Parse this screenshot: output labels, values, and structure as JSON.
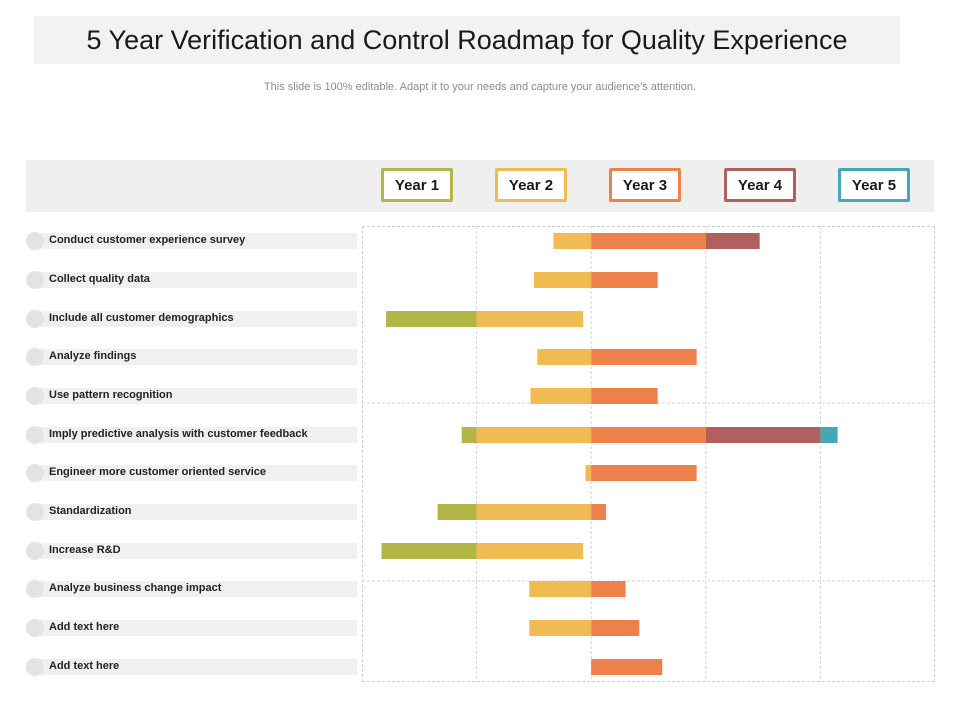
{
  "slide": {
    "title": "5 Year Verification and Control Roadmap for Quality Experience",
    "subtitle": "This slide is 100% editable. Adapt it to your needs and capture your audience’s attention."
  },
  "colors": {
    "year1": "#b3b546",
    "year2": "#f0bb52",
    "year3": "#ee804c",
    "year4": "#b0605f",
    "year5": "#44a7b3",
    "label_bg": "#f0f0f0",
    "dot": "#e3e3e3"
  },
  "chart_data": {
    "type": "gantt",
    "years": [
      "Year 1",
      "Year 2",
      "Year 3",
      "Year 4",
      "Year 5"
    ],
    "time_unit": "year",
    "x_range": [
      0,
      5
    ],
    "tasks": [
      {
        "label": "Conduct customer experience survey",
        "start": 1.67,
        "end": 3.47
      },
      {
        "label": "Collect quality data",
        "start": 1.5,
        "end": 2.58
      },
      {
        "label": "Include all customer demographics",
        "start": 0.21,
        "end": 1.93
      },
      {
        "label": "Analyze findings",
        "start": 1.53,
        "end": 2.92
      },
      {
        "label": "Use pattern recognition",
        "start": 1.47,
        "end": 2.58
      },
      {
        "label": "Imply predictive analysis with customer feedback",
        "start": 0.87,
        "end": 4.15
      },
      {
        "label": "Engineer more customer oriented service",
        "start": 1.95,
        "end": 2.92
      },
      {
        "label": "Standardization",
        "start": 0.66,
        "end": 2.13
      },
      {
        "label": "Increase R&D",
        "start": 0.17,
        "end": 1.93
      },
      {
        "label": "Analyze business change impact",
        "start": 1.46,
        "end": 2.3
      },
      {
        "label": "Add text here",
        "start": 1.46,
        "end": 2.42
      },
      {
        "label": "Add text here",
        "start": 2.0,
        "end": 2.62
      }
    ]
  }
}
